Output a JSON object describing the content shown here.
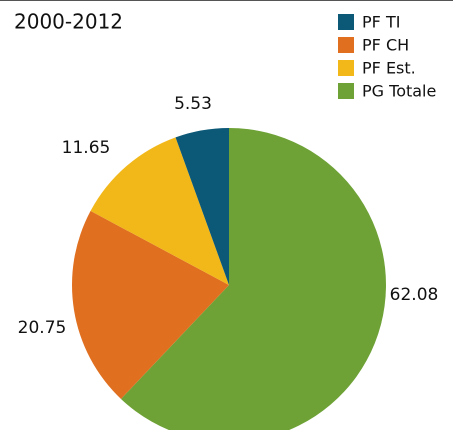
{
  "chart_data": {
    "type": "pie",
    "title": "2000-2012",
    "categories": [
      "PF TI",
      "PF CH",
      "PF Est.",
      "PG Totale"
    ],
    "values": [
      5.53,
      20.75,
      11.65,
      62.08
    ],
    "colors": [
      "#0b5877",
      "#e07020",
      "#f2b81a",
      "#6ea236"
    ],
    "legend": "top-right"
  }
}
